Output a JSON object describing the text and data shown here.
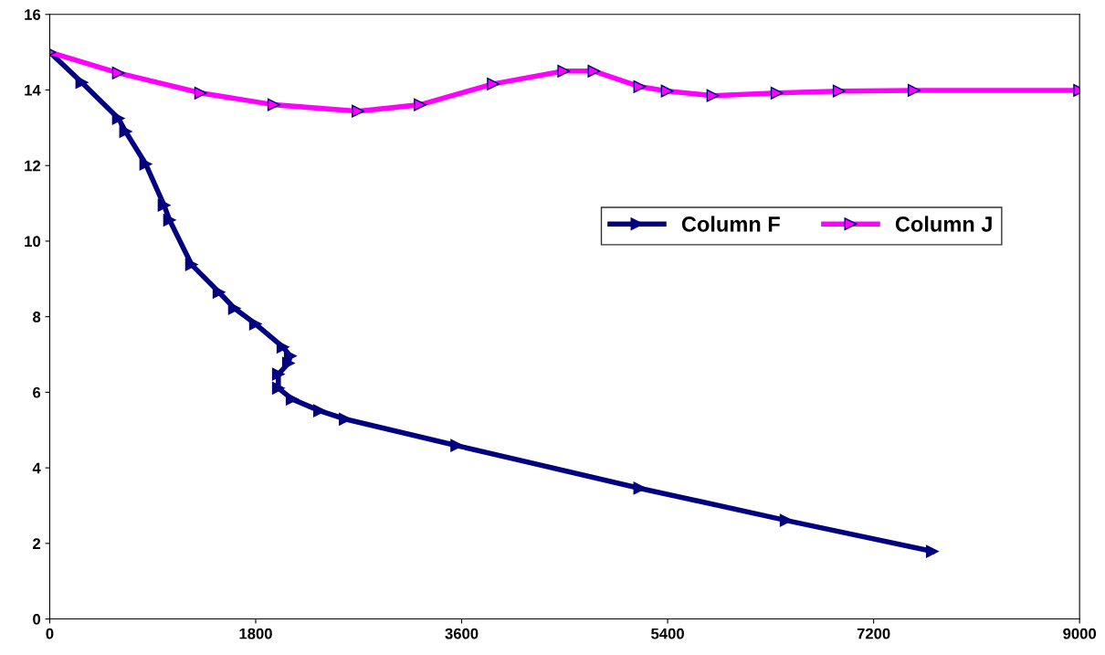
{
  "chart_data": {
    "type": "line",
    "xlim": [
      0,
      9000
    ],
    "xticks": [
      0,
      1800,
      3600,
      5400,
      7200,
      9000
    ],
    "ylim": [
      0,
      16
    ],
    "yticks": [
      0,
      2,
      4,
      6,
      8,
      10,
      12,
      14,
      16
    ],
    "grid": false,
    "legend": "right",
    "marker": "triangle",
    "line_style": "solid",
    "series": [
      {
        "name": "Column F",
        "color": "#000080",
        "x": [
          0,
          280,
          600,
          663,
          839,
          999,
          1047,
          1239,
          1479,
          1614,
          1798,
          2038,
          2102,
          2086,
          1998,
          1998,
          2118,
          2358,
          2582,
          3557,
          5156,
          6435,
          7713
        ],
        "values": [
          15,
          14.2,
          13.25,
          12.9,
          12.04,
          10.95,
          10.56,
          9.38,
          8.65,
          8.22,
          7.81,
          7.2,
          6.96,
          6.77,
          6.48,
          6.11,
          5.82,
          5.51,
          5.29,
          4.59,
          3.46,
          2.61,
          1.79
        ]
      },
      {
        "name": "Column J",
        "color": "#ff00ff",
        "x": [
          0,
          600,
          1319,
          1958,
          2694,
          3237,
          3876,
          4492,
          4756,
          5156,
          5396,
          5795,
          6355,
          6898,
          7553,
          9000
        ],
        "values": [
          15,
          14.45,
          13.92,
          13.61,
          13.44,
          13.61,
          14.16,
          14.5,
          14.5,
          14.09,
          13.97,
          13.85,
          13.92,
          13.97,
          13.99,
          13.99
        ]
      }
    ]
  }
}
